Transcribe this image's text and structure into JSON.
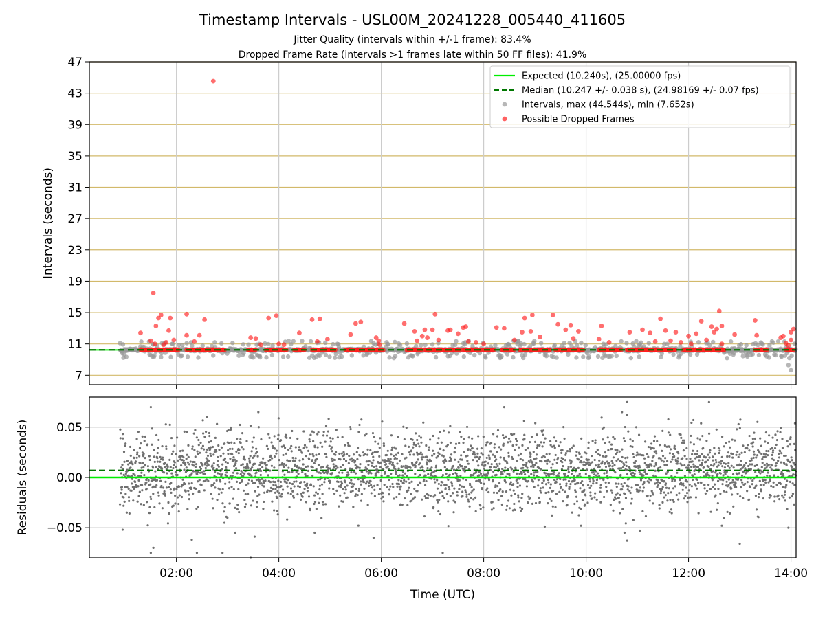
{
  "title": "Timestamp Intervals - USL00M_20241228_005440_411605",
  "subtitle_1": "Jitter Quality (intervals within +/-1 frame): 83.4%",
  "subtitle_2": "Dropped Frame Rate (intervals >1 frames late within 50 FF files): 41.9%",
  "colors": {
    "expected": "#00ee00",
    "median": "#007700",
    "intervals": "#999999",
    "dropped": "#ff2020",
    "residuals": "#707070",
    "hgrid_top": "#d2b96a",
    "grid": "#cccccc"
  },
  "legend": {
    "placement": "upper-right",
    "items": [
      {
        "label": "Expected (10.240s), (25.00000 fps)",
        "kind": "solid-line",
        "color": "#00ee00"
      },
      {
        "label": "Median (10.247 +/- 0.038 s), (24.98169 +/- 0.07 fps)",
        "kind": "dashed-line",
        "color": "#007700"
      },
      {
        "label": "Intervals, max (44.544s), min (7.652s)",
        "kind": "dot",
        "color": "#999999"
      },
      {
        "label": "Possible Dropped Frames",
        "kind": "dot",
        "color": "#ff2020"
      }
    ]
  },
  "chart_data": [
    {
      "type": "scatter",
      "ylabel": "Intervals (seconds)",
      "xlabel": "",
      "x_unit": "hours UTC",
      "xlim": [
        0.3,
        14.1
      ],
      "ylim": [
        5.8,
        47
      ],
      "yticks": [
        "7",
        "11",
        "15",
        "19",
        "23",
        "27",
        "31",
        "35",
        "39",
        "43",
        "47"
      ],
      "grid": "vertical grid + horizontal tan grid",
      "expected": 10.24,
      "median": 10.247,
      "baseline_start": 0.3,
      "data_start": 0.9,
      "data_end": 14.1,
      "max_interval": 44.544,
      "min_interval": 7.652,
      "max_interval_time": 2.7,
      "dropped_frames": [
        [
          1.55,
          17.5
        ],
        [
          1.65,
          14.3
        ],
        [
          1.7,
          14.7
        ],
        [
          1.6,
          13.3
        ],
        [
          1.88,
          14.3
        ],
        [
          1.85,
          12.7
        ],
        [
          1.3,
          12.4
        ],
        [
          1.5,
          11.4
        ],
        [
          1.58,
          11.0
        ],
        [
          1.8,
          11.2
        ],
        [
          1.95,
          11.5
        ],
        [
          1.75,
          10.9
        ],
        [
          2.2,
          14.8
        ],
        [
          2.2,
          12.1
        ],
        [
          2.35,
          11.3
        ],
        [
          2.45,
          12.1
        ],
        [
          2.55,
          14.1
        ],
        [
          2.72,
          44.54
        ],
        [
          3.45,
          11.8
        ],
        [
          3.55,
          11.7
        ],
        [
          3.65,
          10.9
        ],
        [
          3.8,
          14.3
        ],
        [
          3.95,
          14.6
        ],
        [
          4.0,
          11.0
        ],
        [
          4.1,
          10.9
        ],
        [
          4.4,
          12.4
        ],
        [
          4.65,
          14.1
        ],
        [
          4.8,
          14.2
        ],
        [
          4.75,
          11.3
        ],
        [
          4.95,
          11.6
        ],
        [
          5.4,
          12.2
        ],
        [
          5.5,
          13.6
        ],
        [
          5.6,
          13.8
        ],
        [
          5.9,
          11.8
        ],
        [
          5.95,
          11.4
        ],
        [
          5.97,
          10.9
        ],
        [
          6.45,
          13.6
        ],
        [
          6.65,
          12.6
        ],
        [
          6.7,
          11.4
        ],
        [
          6.8,
          12.0
        ],
        [
          6.85,
          12.8
        ],
        [
          6.9,
          11.8
        ],
        [
          7.05,
          14.8
        ],
        [
          7.0,
          12.8
        ],
        [
          7.12,
          11.5
        ],
        [
          7.3,
          12.7
        ],
        [
          7.35,
          12.8
        ],
        [
          7.5,
          12.3
        ],
        [
          7.6,
          13.1
        ],
        [
          7.65,
          13.2
        ],
        [
          7.7,
          11.3
        ],
        [
          7.85,
          11.2
        ],
        [
          8.0,
          11.0
        ],
        [
          8.25,
          13.1
        ],
        [
          8.4,
          13.0
        ],
        [
          8.6,
          11.5
        ],
        [
          8.75,
          12.5
        ],
        [
          8.8,
          14.3
        ],
        [
          8.95,
          14.7
        ],
        [
          8.92,
          12.6
        ],
        [
          9.1,
          11.9
        ],
        [
          9.35,
          14.7
        ],
        [
          9.45,
          13.5
        ],
        [
          9.6,
          12.8
        ],
        [
          9.7,
          13.4
        ],
        [
          9.75,
          11.7
        ],
        [
          9.85,
          12.6
        ],
        [
          10.25,
          11.6
        ],
        [
          10.3,
          13.3
        ],
        [
          10.45,
          11.2
        ],
        [
          10.85,
          12.5
        ],
        [
          11.1,
          12.8
        ],
        [
          11.25,
          12.4
        ],
        [
          11.35,
          11.3
        ],
        [
          11.45,
          14.2
        ],
        [
          11.55,
          12.7
        ],
        [
          11.65,
          11.4
        ],
        [
          11.75,
          12.5
        ],
        [
          11.85,
          11.2
        ],
        [
          12.0,
          12.0
        ],
        [
          12.05,
          11.0
        ],
        [
          12.15,
          12.3
        ],
        [
          12.25,
          13.9
        ],
        [
          12.35,
          11.5
        ],
        [
          12.45,
          13.2
        ],
        [
          12.5,
          12.5
        ],
        [
          12.55,
          12.9
        ],
        [
          12.6,
          15.2
        ],
        [
          12.65,
          13.3
        ],
        [
          12.65,
          11.0
        ],
        [
          12.9,
          12.2
        ],
        [
          13.3,
          14.0
        ],
        [
          13.33,
          12.1
        ],
        [
          13.8,
          11.8
        ],
        [
          13.85,
          12.0
        ],
        [
          13.9,
          11.1
        ],
        [
          13.95,
          10.8
        ],
        [
          14.0,
          12.5
        ],
        [
          14.05,
          12.9
        ],
        [
          14.0,
          11.5
        ]
      ]
    },
    {
      "type": "scatter",
      "ylabel": "Residuals (seconds)",
      "xlabel": "Time (UTC)",
      "x_unit": "hours UTC",
      "xlim": [
        0.3,
        14.1
      ],
      "ylim": [
        -0.08,
        0.08
      ],
      "yticks": [
        "0.05",
        "0.00",
        "−0.05"
      ],
      "xticks": [
        {
          "value": 2,
          "label": "02:00"
        },
        {
          "value": 4,
          "label": "04:00"
        },
        {
          "value": 6,
          "label": "06:00"
        },
        {
          "value": 8,
          "label": "08:00"
        },
        {
          "value": 10,
          "label": "10:00"
        },
        {
          "value": 12,
          "label": "12:00"
        },
        {
          "value": 14,
          "label": "14:00"
        }
      ],
      "expected_residual": 0.0,
      "median_residual": 0.007,
      "data_start": 0.9,
      "data_end": 14.1,
      "outliers": [
        [
          0.95,
          -0.052
        ],
        [
          1.5,
          -0.075
        ],
        [
          1.55,
          -0.07
        ],
        [
          2.3,
          -0.062
        ],
        [
          2.4,
          -0.075
        ],
        [
          2.9,
          -0.075
        ],
        [
          3.45,
          -0.08
        ],
        [
          3.15,
          -0.055
        ],
        [
          4.7,
          -0.055
        ],
        [
          5.85,
          -0.06
        ],
        [
          7.2,
          -0.075
        ],
        [
          9.9,
          -0.048
        ],
        [
          10.75,
          -0.055
        ],
        [
          10.8,
          -0.063
        ],
        [
          11.05,
          -0.053
        ],
        [
          12.65,
          -0.048
        ],
        [
          13.0,
          -0.066
        ],
        [
          13.95,
          -0.05
        ],
        [
          1.5,
          0.07
        ],
        [
          2.6,
          0.06
        ],
        [
          10.8,
          0.075
        ],
        [
          12.4,
          0.075
        ],
        [
          8.4,
          0.07
        ],
        [
          3.6,
          0.065
        ],
        [
          10.7,
          0.065
        ]
      ]
    }
  ]
}
